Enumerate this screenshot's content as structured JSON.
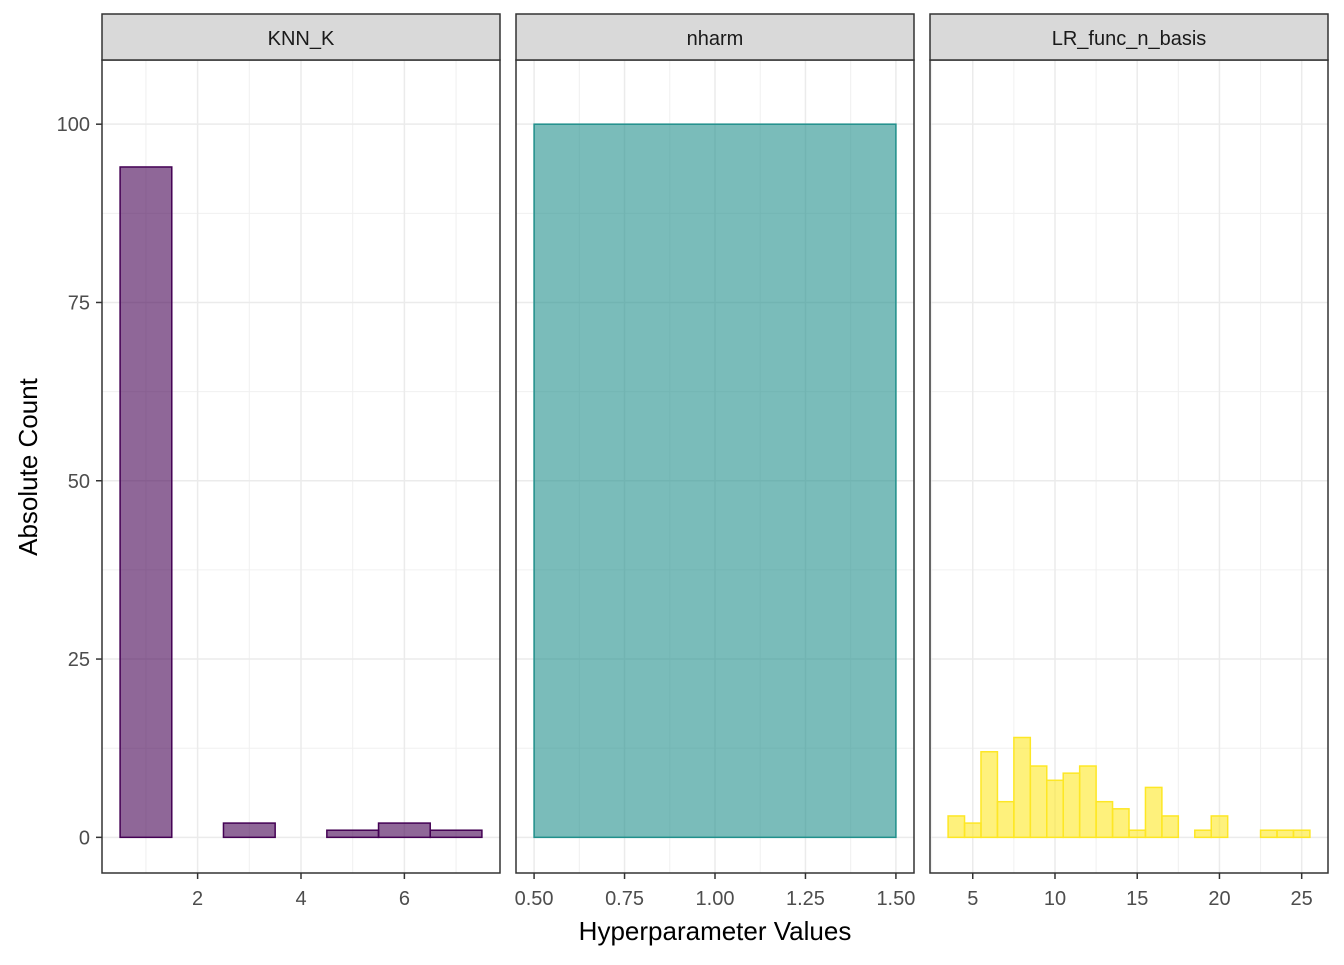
{
  "chart_data": {
    "type": "bar",
    "subtype": "faceted-histogram",
    "xlabel": "Hyperparameter Values",
    "ylabel": "Absolute Count",
    "ylim": [
      -5,
      109
    ],
    "y_ticks": [
      0,
      25,
      50,
      75,
      100
    ],
    "grid": true,
    "legend": "none",
    "panels": [
      {
        "name": "KNN_K",
        "fill": "#440154",
        "xlim": [
          0.15,
          7.85
        ],
        "x_ticks": [
          2,
          4,
          6
        ],
        "x_tick_labels": [
          "2",
          "4",
          "6"
        ],
        "bins": [
          {
            "x0": 0.5,
            "x1": 1.5,
            "count": 94
          },
          {
            "x0": 1.5,
            "x1": 2.5,
            "count": 0
          },
          {
            "x0": 2.5,
            "x1": 3.5,
            "count": 2
          },
          {
            "x0": 3.5,
            "x1": 4.5,
            "count": 0
          },
          {
            "x0": 4.5,
            "x1": 5.5,
            "count": 1
          },
          {
            "x0": 5.5,
            "x1": 6.5,
            "count": 2
          },
          {
            "x0": 6.5,
            "x1": 7.5,
            "count": 1
          }
        ]
      },
      {
        "name": "nharm",
        "fill": "#21908C",
        "xlim": [
          0.45,
          1.55
        ],
        "x_ticks": [
          0.5,
          0.75,
          1.0,
          1.25,
          1.5
        ],
        "x_tick_labels": [
          "0.50",
          "0.75",
          "1.00",
          "1.25",
          "1.50"
        ],
        "bins": [
          {
            "x0": 0.5,
            "x1": 1.5,
            "count": 100
          }
        ]
      },
      {
        "name": "LR_func_n_basis",
        "fill": "#FDE725",
        "xlim": [
          2.4,
          26.6
        ],
        "x_ticks": [
          5,
          10,
          15,
          20,
          25
        ],
        "x_tick_labels": [
          "5",
          "10",
          "15",
          "20",
          "25"
        ],
        "bins": [
          {
            "x0": 3.5,
            "x1": 4.5,
            "count": 3
          },
          {
            "x0": 4.5,
            "x1": 5.5,
            "count": 2
          },
          {
            "x0": 5.5,
            "x1": 6.5,
            "count": 12
          },
          {
            "x0": 6.5,
            "x1": 7.5,
            "count": 5
          },
          {
            "x0": 7.5,
            "x1": 8.5,
            "count": 14
          },
          {
            "x0": 8.5,
            "x1": 9.5,
            "count": 10
          },
          {
            "x0": 9.5,
            "x1": 10.5,
            "count": 8
          },
          {
            "x0": 10.5,
            "x1": 11.5,
            "count": 9
          },
          {
            "x0": 11.5,
            "x1": 12.5,
            "count": 10
          },
          {
            "x0": 12.5,
            "x1": 13.5,
            "count": 5
          },
          {
            "x0": 13.5,
            "x1": 14.5,
            "count": 4
          },
          {
            "x0": 14.5,
            "x1": 15.5,
            "count": 1
          },
          {
            "x0": 15.5,
            "x1": 16.5,
            "count": 7
          },
          {
            "x0": 16.5,
            "x1": 17.5,
            "count": 3
          },
          {
            "x0": 17.5,
            "x1": 18.5,
            "count": 0
          },
          {
            "x0": 18.5,
            "x1": 19.5,
            "count": 1
          },
          {
            "x0": 19.5,
            "x1": 20.5,
            "count": 3
          },
          {
            "x0": 20.5,
            "x1": 21.5,
            "count": 0
          },
          {
            "x0": 21.5,
            "x1": 22.5,
            "count": 0
          },
          {
            "x0": 22.5,
            "x1": 23.5,
            "count": 1
          },
          {
            "x0": 23.5,
            "x1": 24.5,
            "count": 1
          },
          {
            "x0": 24.5,
            "x1": 25.5,
            "count": 1
          }
        ]
      }
    ]
  }
}
